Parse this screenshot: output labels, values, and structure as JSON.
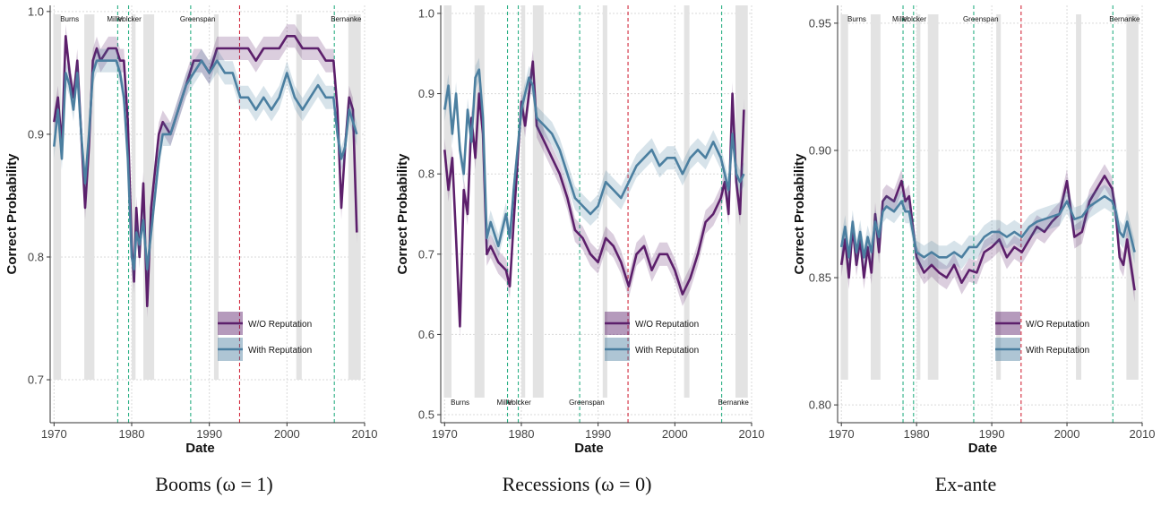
{
  "figure": {
    "captions": [
      "Booms (ω = 1)",
      "Recessions (ω = 0)",
      "Ex-ante"
    ]
  },
  "colors": {
    "wo_reputation": "#5c1f6b",
    "with_reputation": "#4b7fa0",
    "recession_shade": "#e3e3e3",
    "chair_line": "#2aaf84",
    "greenspan_line": "#d2283c",
    "grid": "#d9d9d9"
  },
  "chart_data": [
    {
      "type": "line",
      "title": "",
      "xlabel": "Date",
      "ylabel": "Correct Probability",
      "xlim": [
        1969.5,
        2010
      ],
      "ylim": [
        0.665,
        1.005
      ],
      "xticks": [
        1970,
        1980,
        1990,
        2000,
        2010
      ],
      "xtick_labels": [
        "1970",
        "1980",
        "1990",
        "2000",
        "2010"
      ],
      "yticks": [
        0.7,
        0.8,
        0.9,
        1.0
      ],
      "ytick_labels": [
        "0.7",
        "0.8",
        "0.9",
        "1.0"
      ],
      "grid": true,
      "chair_labels_position": "top",
      "legend": {
        "position": "bottom-right",
        "entries": [
          "W/O Reputation",
          "With Reputation"
        ]
      },
      "chairs": [
        {
          "name": "Burns",
          "start": 1970.1
        },
        {
          "name": "Miller",
          "start": 1978.2
        },
        {
          "name": "Volcker",
          "start": 1979.6
        },
        {
          "name": "Greenspan",
          "start": 1987.6
        },
        {
          "name": "Bernanke",
          "start": 2006.1
        }
      ],
      "greenspan_marker": 1993.9,
      "recessions": [
        [
          1969.9,
          1970.9
        ],
        [
          1973.9,
          1975.2
        ],
        [
          1980.0,
          1980.5
        ],
        [
          1981.5,
          1982.9
        ],
        [
          1990.6,
          1991.2
        ],
        [
          2001.2,
          2001.9
        ],
        [
          2007.9,
          2009.5
        ]
      ],
      "series": [
        {
          "name": "W/O Reputation",
          "x": [
            1970,
            1970.5,
            1971,
            1971.5,
            1972,
            1972.5,
            1973,
            1973.5,
            1974,
            1974.5,
            1975,
            1975.5,
            1976,
            1977,
            1978,
            1978.5,
            1979,
            1979.5,
            1980,
            1980.3,
            1980.6,
            1981,
            1981.5,
            1982,
            1982.5,
            1983,
            1983.5,
            1984,
            1985,
            1986,
            1987,
            1988,
            1989,
            1990,
            1991,
            1992,
            1993,
            1994,
            1995,
            1996,
            1997,
            1998,
            1999,
            2000,
            2001,
            2002,
            2003,
            2004,
            2005,
            2006,
            2006.5,
            2007,
            2007.5,
            2008,
            2008.5,
            2009
          ],
          "values": [
            0.91,
            0.93,
            0.89,
            0.98,
            0.95,
            0.93,
            0.96,
            0.9,
            0.84,
            0.89,
            0.96,
            0.97,
            0.96,
            0.97,
            0.97,
            0.96,
            0.96,
            0.91,
            0.81,
            0.78,
            0.84,
            0.8,
            0.86,
            0.76,
            0.84,
            0.87,
            0.9,
            0.91,
            0.9,
            0.92,
            0.94,
            0.96,
            0.96,
            0.95,
            0.97,
            0.97,
            0.97,
            0.97,
            0.97,
            0.96,
            0.97,
            0.97,
            0.97,
            0.98,
            0.98,
            0.97,
            0.97,
            0.97,
            0.96,
            0.96,
            0.92,
            0.84,
            0.89,
            0.93,
            0.92,
            0.82
          ]
        },
        {
          "name": "With Reputation",
          "x": [
            1970,
            1970.5,
            1971,
            1971.5,
            1972,
            1972.5,
            1973,
            1973.5,
            1974,
            1974.5,
            1975,
            1975.5,
            1976,
            1977,
            1978,
            1978.5,
            1979,
            1979.5,
            1980,
            1980.3,
            1980.6,
            1981,
            1981.5,
            1982,
            1982.5,
            1983,
            1983.5,
            1984,
            1985,
            1986,
            1987,
            1988,
            1989,
            1990,
            1991,
            1992,
            1993,
            1994,
            1995,
            1996,
            1997,
            1998,
            1999,
            2000,
            2001,
            2002,
            2003,
            2004,
            2005,
            2006,
            2006.5,
            2007,
            2007.5,
            2008,
            2008.5,
            2009
          ],
          "values": [
            0.89,
            0.92,
            0.88,
            0.95,
            0.94,
            0.92,
            0.95,
            0.9,
            0.86,
            0.9,
            0.95,
            0.96,
            0.96,
            0.96,
            0.96,
            0.95,
            0.93,
            0.88,
            0.8,
            0.79,
            0.82,
            0.81,
            0.83,
            0.79,
            0.82,
            0.85,
            0.88,
            0.9,
            0.9,
            0.92,
            0.94,
            0.95,
            0.96,
            0.95,
            0.96,
            0.95,
            0.95,
            0.93,
            0.93,
            0.92,
            0.93,
            0.92,
            0.93,
            0.95,
            0.93,
            0.92,
            0.93,
            0.94,
            0.93,
            0.93,
            0.9,
            0.88,
            0.89,
            0.92,
            0.91,
            0.9
          ]
        }
      ]
    },
    {
      "type": "line",
      "title": "",
      "xlabel": "Date",
      "ylabel": "Correct Probability",
      "xlim": [
        1969.5,
        2010
      ],
      "ylim": [
        0.49,
        1.01
      ],
      "xticks": [
        1970,
        1980,
        1990,
        2000,
        2010
      ],
      "xtick_labels": [
        "1970",
        "1980",
        "1990",
        "2000",
        "2010"
      ],
      "yticks": [
        0.5,
        0.6,
        0.7,
        0.8,
        0.9,
        1.0
      ],
      "ytick_labels": [
        "0.5",
        "0.6",
        "0.7",
        "0.8",
        "0.9",
        "1.0"
      ],
      "grid": true,
      "chair_labels_position": "bottom",
      "legend": {
        "position": "bottom-right",
        "entries": [
          "W/O Reputation",
          "With Reputation"
        ]
      },
      "chairs": [
        {
          "name": "Burns",
          "start": 1970.1
        },
        {
          "name": "Miller",
          "start": 1978.2
        },
        {
          "name": "Volcker",
          "start": 1979.6
        },
        {
          "name": "Greenspan",
          "start": 1987.6
        },
        {
          "name": "Bernanke",
          "start": 2006.1
        }
      ],
      "greenspan_marker": 1993.9,
      "recessions": [
        [
          1969.9,
          1970.9
        ],
        [
          1973.9,
          1975.2
        ],
        [
          1980.0,
          1980.5
        ],
        [
          1981.5,
          1982.9
        ],
        [
          1990.6,
          1991.2
        ],
        [
          2001.2,
          2001.9
        ],
        [
          2007.9,
          2009.5
        ]
      ],
      "series": [
        {
          "name": "W/O Reputation",
          "x": [
            1970,
            1970.5,
            1971,
            1971.5,
            1972,
            1972.5,
            1973,
            1973.5,
            1974,
            1974.5,
            1975,
            1975.5,
            1976,
            1977,
            1978,
            1978.5,
            1979,
            1980,
            1980.5,
            1981,
            1981.5,
            1982,
            1983,
            1984,
            1985,
            1986,
            1987,
            1988,
            1989,
            1990,
            1991,
            1992,
            1993,
            1994,
            1995,
            1996,
            1997,
            1998,
            1999,
            2000,
            2001,
            2002,
            2003,
            2004,
            2005,
            2006,
            2006.5,
            2007,
            2007.5,
            2008,
            2008.5,
            2009
          ],
          "values": [
            0.83,
            0.78,
            0.82,
            0.72,
            0.61,
            0.78,
            0.75,
            0.87,
            0.82,
            0.9,
            0.85,
            0.7,
            0.71,
            0.69,
            0.68,
            0.66,
            0.74,
            0.89,
            0.86,
            0.9,
            0.94,
            0.86,
            0.84,
            0.82,
            0.8,
            0.77,
            0.73,
            0.72,
            0.7,
            0.69,
            0.72,
            0.71,
            0.69,
            0.66,
            0.7,
            0.71,
            0.68,
            0.7,
            0.7,
            0.68,
            0.65,
            0.67,
            0.7,
            0.74,
            0.75,
            0.77,
            0.79,
            0.75,
            0.9,
            0.79,
            0.75,
            0.88
          ]
        },
        {
          "name": "With Reputation",
          "x": [
            1970,
            1970.5,
            1971,
            1971.5,
            1972,
            1972.5,
            1973,
            1973.5,
            1974,
            1974.5,
            1975,
            1975.5,
            1976,
            1977,
            1978,
            1978.5,
            1979,
            1980,
            1980.5,
            1981,
            1981.5,
            1982,
            1983,
            1984,
            1985,
            1986,
            1987,
            1988,
            1989,
            1990,
            1991,
            1992,
            1993,
            1994,
            1995,
            1996,
            1997,
            1998,
            1999,
            2000,
            2001,
            2002,
            2003,
            2004,
            2005,
            2006,
            2006.5,
            2007,
            2007.5,
            2008,
            2008.5,
            2009
          ],
          "values": [
            0.88,
            0.91,
            0.85,
            0.9,
            0.83,
            0.8,
            0.88,
            0.84,
            0.92,
            0.93,
            0.87,
            0.72,
            0.74,
            0.71,
            0.75,
            0.72,
            0.78,
            0.88,
            0.9,
            0.92,
            0.91,
            0.87,
            0.86,
            0.85,
            0.83,
            0.8,
            0.77,
            0.76,
            0.75,
            0.76,
            0.79,
            0.78,
            0.77,
            0.79,
            0.81,
            0.82,
            0.83,
            0.81,
            0.82,
            0.82,
            0.8,
            0.82,
            0.83,
            0.82,
            0.84,
            0.82,
            0.8,
            0.78,
            0.85,
            0.8,
            0.79,
            0.8
          ]
        }
      ]
    },
    {
      "type": "line",
      "title": "",
      "xlabel": "Date",
      "ylabel": "Correct Probability",
      "xlim": [
        1969.5,
        2010
      ],
      "ylim": [
        0.793,
        0.957
      ],
      "xticks": [
        1970,
        1980,
        1990,
        2000,
        2010
      ],
      "xtick_labels": [
        "1970",
        "1980",
        "1990",
        "2000",
        "2010"
      ],
      "yticks": [
        0.8,
        0.85,
        0.9,
        0.95
      ],
      "ytick_labels": [
        "0.80",
        "0.85",
        "0.90",
        "0.95"
      ],
      "grid": true,
      "chair_labels_position": "top",
      "legend": {
        "position": "bottom-right",
        "entries": [
          "W/O Reputation",
          "With Reputation"
        ]
      },
      "chairs": [
        {
          "name": "Burns",
          "start": 1970.1
        },
        {
          "name": "Miller",
          "start": 1978.2
        },
        {
          "name": "Volcker",
          "start": 1979.6
        },
        {
          "name": "Greenspan",
          "start": 1987.6
        },
        {
          "name": "Bernanke",
          "start": 2006.1
        }
      ],
      "greenspan_marker": 1993.9,
      "recessions": [
        [
          1969.9,
          1970.9
        ],
        [
          1973.9,
          1975.2
        ],
        [
          1980.0,
          1980.5
        ],
        [
          1981.5,
          1982.9
        ],
        [
          1990.6,
          1991.2
        ],
        [
          2001.2,
          2001.9
        ],
        [
          2007.9,
          2009.5
        ]
      ],
      "series": [
        {
          "name": "W/O Reputation",
          "x": [
            1970,
            1970.5,
            1971,
            1971.5,
            1972,
            1972.5,
            1973,
            1973.5,
            1974,
            1974.5,
            1975,
            1975.5,
            1976,
            1977,
            1978,
            1978.5,
            1979,
            1979.5,
            1980,
            1981,
            1982,
            1983,
            1984,
            1985,
            1986,
            1987,
            1988,
            1989,
            1990,
            1991,
            1992,
            1993,
            1994,
            1995,
            1996,
            1997,
            1998,
            1999,
            2000,
            2001,
            2002,
            2003,
            2004,
            2005,
            2006,
            2006.5,
            2007,
            2007.5,
            2008,
            2008.5,
            2009
          ],
          "values": [
            0.855,
            0.865,
            0.85,
            0.87,
            0.855,
            0.865,
            0.85,
            0.862,
            0.852,
            0.875,
            0.86,
            0.88,
            0.882,
            0.88,
            0.888,
            0.88,
            0.882,
            0.87,
            0.858,
            0.852,
            0.855,
            0.852,
            0.85,
            0.855,
            0.848,
            0.853,
            0.852,
            0.86,
            0.862,
            0.865,
            0.858,
            0.862,
            0.86,
            0.865,
            0.87,
            0.868,
            0.872,
            0.875,
            0.888,
            0.866,
            0.868,
            0.88,
            0.885,
            0.89,
            0.885,
            0.875,
            0.858,
            0.855,
            0.865,
            0.855,
            0.845
          ]
        },
        {
          "name": "With Reputation",
          "x": [
            1970,
            1970.5,
            1971,
            1971.5,
            1972,
            1972.5,
            1973,
            1973.5,
            1974,
            1974.5,
            1975,
            1975.5,
            1976,
            1977,
            1978,
            1978.5,
            1979,
            1979.5,
            1980,
            1981,
            1982,
            1983,
            1984,
            1985,
            1986,
            1987,
            1988,
            1989,
            1990,
            1991,
            1992,
            1993,
            1994,
            1995,
            1996,
            1997,
            1998,
            1999,
            2000,
            2001,
            2002,
            2003,
            2004,
            2005,
            2006,
            2006.5,
            2007,
            2007.5,
            2008,
            2008.5,
            2009
          ],
          "values": [
            0.862,
            0.87,
            0.858,
            0.872,
            0.86,
            0.868,
            0.858,
            0.866,
            0.86,
            0.872,
            0.866,
            0.876,
            0.878,
            0.876,
            0.88,
            0.876,
            0.876,
            0.868,
            0.86,
            0.858,
            0.86,
            0.858,
            0.858,
            0.86,
            0.858,
            0.862,
            0.862,
            0.866,
            0.868,
            0.868,
            0.866,
            0.868,
            0.866,
            0.87,
            0.872,
            0.873,
            0.874,
            0.875,
            0.88,
            0.873,
            0.874,
            0.878,
            0.88,
            0.882,
            0.88,
            0.876,
            0.868,
            0.866,
            0.872,
            0.866,
            0.86
          ]
        }
      ]
    }
  ]
}
